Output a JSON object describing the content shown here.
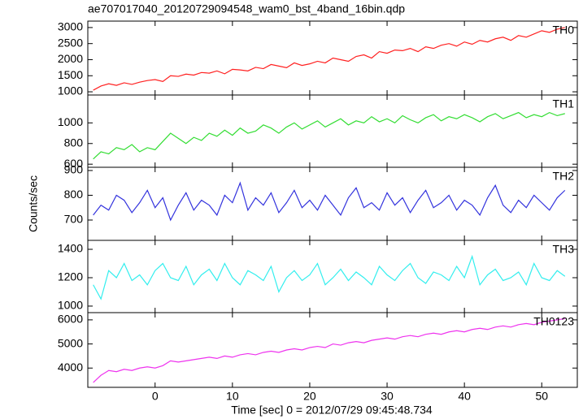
{
  "title": "ae707017040_20120729094548_wam0_bst_4band_16bin.qdp",
  "xlabel": "Time [sec] 0 = 2012/07/29 09:45:48.734",
  "ylabel": "Counts/sec",
  "chart_data": [
    {
      "type": "line",
      "label": "TH0",
      "color": "#ff2020",
      "x": [
        -8,
        -7,
        -6,
        -5,
        -4,
        -3,
        -2,
        -1,
        0,
        1,
        2,
        3,
        4,
        5,
        6,
        7,
        8,
        9,
        10,
        11,
        12,
        13,
        14,
        15,
        16,
        17,
        18,
        19,
        20,
        21,
        22,
        23,
        24,
        25,
        26,
        27,
        28,
        29,
        30,
        31,
        32,
        33,
        34,
        35,
        36,
        37,
        38,
        39,
        40,
        41,
        42,
        43,
        44,
        45,
        46,
        47,
        48,
        49,
        50,
        51,
        52,
        53
      ],
      "values": [
        1050,
        1180,
        1250,
        1200,
        1280,
        1230,
        1300,
        1350,
        1380,
        1320,
        1500,
        1480,
        1550,
        1520,
        1600,
        1580,
        1650,
        1560,
        1700,
        1680,
        1650,
        1760,
        1720,
        1850,
        1800,
        1750,
        1900,
        1820,
        1870,
        1950,
        1900,
        2050,
        2000,
        1950,
        2100,
        2150,
        2050,
        2250,
        2200,
        2300,
        2280,
        2350,
        2250,
        2400,
        2350,
        2450,
        2500,
        2420,
        2550,
        2480,
        2600,
        2550,
        2650,
        2700,
        2600,
        2750,
        2700,
        2800,
        2900,
        2850,
        2950,
        3000
      ],
      "xlim": [
        -8.7,
        54.6
      ],
      "xticks": [
        0,
        10,
        20,
        30,
        40,
        50
      ],
      "ylim": [
        900,
        3200
      ],
      "yticks": [
        1000,
        1500,
        2000,
        2500,
        3000
      ]
    },
    {
      "type": "line",
      "label": "TH1",
      "color": "#33dd33",
      "x": [
        -8,
        -7,
        -6,
        -5,
        -4,
        -3,
        -2,
        -1,
        0,
        1,
        2,
        3,
        4,
        5,
        6,
        7,
        8,
        9,
        10,
        11,
        12,
        13,
        14,
        15,
        16,
        17,
        18,
        19,
        20,
        21,
        22,
        23,
        24,
        25,
        26,
        27,
        28,
        29,
        30,
        31,
        32,
        33,
        34,
        35,
        36,
        37,
        38,
        39,
        40,
        41,
        42,
        43,
        44,
        45,
        46,
        47,
        48,
        49,
        50,
        51,
        52,
        53
      ],
      "values": [
        650,
        720,
        700,
        760,
        740,
        790,
        720,
        760,
        740,
        820,
        900,
        850,
        800,
        860,
        830,
        900,
        870,
        930,
        880,
        950,
        900,
        920,
        980,
        950,
        900,
        960,
        1000,
        940,
        980,
        1020,
        960,
        1000,
        1040,
        980,
        1020,
        1000,
        1060,
        1010,
        1040,
        1000,
        1070,
        1030,
        1000,
        1050,
        1080,
        1020,
        1060,
        1040,
        1080,
        1050,
        1010,
        1060,
        1090,
        1040,
        1070,
        1100,
        1050,
        1080,
        1060,
        1100,
        1070,
        1090
      ],
      "xlim": [
        -8.7,
        54.6
      ],
      "xticks": [
        0,
        10,
        20,
        30,
        40,
        50
      ],
      "ylim": [
        570,
        1270
      ],
      "yticks": [
        600,
        800,
        1000
      ]
    },
    {
      "type": "line",
      "label": "TH2",
      "color": "#3333dd",
      "x": [
        -8,
        -7,
        -6,
        -5,
        -4,
        -3,
        -2,
        -1,
        0,
        1,
        2,
        3,
        4,
        5,
        6,
        7,
        8,
        9,
        10,
        11,
        12,
        13,
        14,
        15,
        16,
        17,
        18,
        19,
        20,
        21,
        22,
        23,
        24,
        25,
        26,
        27,
        28,
        29,
        30,
        31,
        32,
        33,
        34,
        35,
        36,
        37,
        38,
        39,
        40,
        41,
        42,
        43,
        44,
        45,
        46,
        47,
        48,
        49,
        50,
        51,
        52,
        53
      ],
      "values": [
        720,
        760,
        740,
        800,
        780,
        730,
        770,
        820,
        750,
        790,
        700,
        760,
        810,
        740,
        780,
        760,
        720,
        800,
        770,
        850,
        740,
        790,
        760,
        810,
        730,
        770,
        820,
        750,
        780,
        740,
        800,
        760,
        720,
        790,
        830,
        750,
        770,
        740,
        810,
        760,
        790,
        730,
        780,
        820,
        750,
        770,
        800,
        740,
        780,
        760,
        720,
        790,
        840,
        760,
        730,
        780,
        750,
        800,
        770,
        740,
        790,
        820
      ],
      "xlim": [
        -8.7,
        54.6
      ],
      "xticks": [
        0,
        10,
        20,
        30,
        40,
        50
      ],
      "ylim": [
        618,
        913
      ],
      "yticks": [
        700,
        800,
        900
      ]
    },
    {
      "type": "line",
      "label": "TH3",
      "color": "#33eeee",
      "x": [
        -8,
        -7,
        -6,
        -5,
        -4,
        -3,
        -2,
        -1,
        0,
        1,
        2,
        3,
        4,
        5,
        6,
        7,
        8,
        9,
        10,
        11,
        12,
        13,
        14,
        15,
        16,
        17,
        18,
        19,
        20,
        21,
        22,
        23,
        24,
        25,
        26,
        27,
        28,
        29,
        30,
        31,
        32,
        33,
        34,
        35,
        36,
        37,
        38,
        39,
        40,
        41,
        42,
        43,
        44,
        45,
        46,
        47,
        48,
        49,
        50,
        51,
        52,
        53
      ],
      "values": [
        1150,
        1050,
        1250,
        1200,
        1300,
        1180,
        1220,
        1150,
        1250,
        1300,
        1200,
        1180,
        1280,
        1150,
        1220,
        1260,
        1180,
        1300,
        1200,
        1150,
        1250,
        1220,
        1180,
        1280,
        1100,
        1200,
        1250,
        1180,
        1220,
        1300,
        1150,
        1200,
        1260,
        1180,
        1240,
        1200,
        1150,
        1280,
        1220,
        1180,
        1250,
        1300,
        1200,
        1160,
        1240,
        1220,
        1180,
        1280,
        1200,
        1350,
        1150,
        1220,
        1260,
        1180,
        1200,
        1240,
        1150,
        1300,
        1200,
        1180,
        1250,
        1210
      ],
      "xlim": [
        -8.7,
        54.6
      ],
      "xticks": [
        0,
        10,
        20,
        30,
        40,
        50
      ],
      "ylim": [
        954,
        1463
      ],
      "yticks": [
        1000,
        1200,
        1400
      ]
    },
    {
      "type": "line",
      "label": "TH0123",
      "color": "#ee33ee",
      "x": [
        -8,
        -7,
        -6,
        -5,
        -4,
        -3,
        -2,
        -1,
        0,
        1,
        2,
        3,
        4,
        5,
        6,
        7,
        8,
        9,
        10,
        11,
        12,
        13,
        14,
        15,
        16,
        17,
        18,
        19,
        20,
        21,
        22,
        23,
        24,
        25,
        26,
        27,
        28,
        29,
        30,
        31,
        32,
        33,
        34,
        35,
        36,
        37,
        38,
        39,
        40,
        41,
        42,
        43,
        44,
        45,
        46,
        47,
        48,
        49,
        50,
        51,
        52,
        53
      ],
      "values": [
        3400,
        3700,
        3900,
        3850,
        3950,
        3900,
        4000,
        4050,
        4000,
        4100,
        4300,
        4250,
        4300,
        4350,
        4400,
        4450,
        4400,
        4500,
        4450,
        4550,
        4600,
        4550,
        4650,
        4700,
        4650,
        4750,
        4800,
        4750,
        4850,
        4900,
        4850,
        5000,
        4950,
        5050,
        5100,
        5050,
        5150,
        5200,
        5250,
        5200,
        5300,
        5350,
        5300,
        5400,
        5450,
        5400,
        5500,
        5550,
        5500,
        5600,
        5650,
        5600,
        5700,
        5750,
        5700,
        5800,
        5850,
        5800,
        5900,
        5950,
        6000,
        6050
      ],
      "xlim": [
        -8.7,
        54.6
      ],
      "xticks": [
        0,
        10,
        20,
        30,
        40,
        50
      ],
      "ylim": [
        3200,
        6300
      ],
      "yticks": [
        4000,
        5000,
        6000
      ]
    }
  ]
}
